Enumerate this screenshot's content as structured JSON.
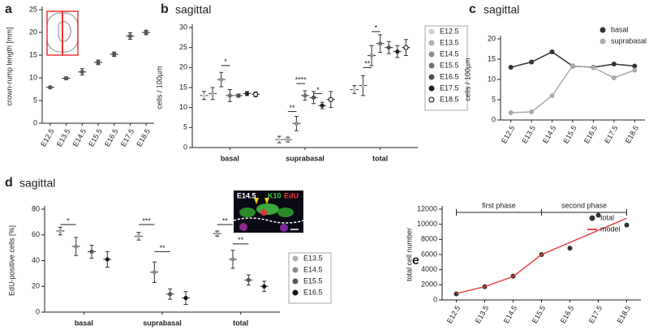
{
  "chart_data": [
    {
      "type": "dot",
      "panel": "a",
      "ylabel": "crown-rump length [mm]",
      "categories": [
        "E12.5",
        "E13.5",
        "E14.5",
        "E15.5",
        "E16.5",
        "E17.5",
        "E18.5"
      ],
      "values": [
        7.9,
        9.9,
        11.3,
        13.4,
        15.2,
        19.2,
        20.0
      ],
      "errors": [
        0.2,
        0.3,
        0.7,
        0.5,
        0.5,
        0.7,
        0.5
      ],
      "color": "#555555",
      "ylim": [
        0,
        25
      ],
      "yticks": [
        0,
        5,
        10,
        15,
        20,
        25
      ]
    },
    {
      "type": "dot",
      "panel": "b",
      "title": "sagittal",
      "ylabel": "cells / 100µm",
      "categories": [
        "basal",
        "suprabasal",
        "total"
      ],
      "series": [
        {
          "name": "E12.5",
          "color": "#d0d0d0",
          "values": [
            13,
            2,
            14.5
          ],
          "errors": [
            1,
            0.8,
            1
          ]
        },
        {
          "name": "E13.5",
          "color": "#b0b0b0",
          "values": [
            13.5,
            2,
            15.5
          ],
          "errors": [
            1.5,
            0.6,
            2.5
          ]
        },
        {
          "name": "E14.5",
          "color": "#909090",
          "values": [
            17,
            6,
            23
          ],
          "errors": [
            1.8,
            1.8,
            2.5
          ]
        },
        {
          "name": "E15.5",
          "color": "#707070",
          "values": [
            13,
            13,
            26
          ],
          "errors": [
            1.5,
            1.2,
            2.2
          ]
        },
        {
          "name": "E16.5",
          "color": "#505050",
          "values": [
            13,
            12.5,
            25
          ],
          "errors": [
            0.4,
            1.5,
            1.5
          ]
        },
        {
          "name": "E17.5",
          "color": "#202020",
          "values": [
            13.5,
            10.5,
            24
          ],
          "errors": [
            0.5,
            0.8,
            1.5
          ]
        },
        {
          "name": "E18.5",
          "color": "#000000",
          "filled": false,
          "values": [
            13.3,
            12,
            25
          ],
          "errors": [
            0.6,
            2,
            2
          ]
        }
      ],
      "annotations": [
        "*",
        "**",
        "****",
        "*",
        "**",
        "*"
      ],
      "ylim": [
        0,
        30
      ],
      "yticks": [
        0,
        5,
        10,
        15,
        20,
        25,
        30
      ],
      "legend": "right"
    },
    {
      "type": "line",
      "panel": "c",
      "title": "sagittal",
      "ylabel": "cells / 100µm",
      "categories": [
        "E12.5",
        "E13.5",
        "E14.5",
        "E15.5",
        "E16.5",
        "E17.5",
        "E18.5"
      ],
      "series": [
        {
          "name": "basal",
          "color": "#333333",
          "style": "line+markers",
          "values": [
            13,
            14.3,
            16.8,
            13.3,
            13,
            13.8,
            13.3
          ]
        },
        {
          "name": "suprabasal",
          "color": "#aaaaaa",
          "style": "line+markers",
          "values": [
            1.8,
            2,
            6,
            13.4,
            12.9,
            10.4,
            12.3
          ]
        }
      ],
      "ylim": [
        0,
        20
      ],
      "yticks": [
        0,
        5,
        10,
        15,
        20
      ],
      "legend": "upper right"
    },
    {
      "type": "dot",
      "panel": "d",
      "title": "sagittal",
      "ylabel": "EdU-positive cells [%]",
      "categories": [
        "basal",
        "suprabasal",
        "total"
      ],
      "series": [
        {
          "name": "E13.5",
          "color": "#b0b0b0",
          "values": [
            63,
            59,
            61
          ],
          "errors": [
            3,
            3,
            2
          ]
        },
        {
          "name": "E14.5",
          "color": "#8a8a8a",
          "values": [
            51,
            31,
            41
          ],
          "errors": [
            7,
            8,
            7
          ]
        },
        {
          "name": "E15.5",
          "color": "#555555",
          "values": [
            47,
            14,
            25
          ],
          "errors": [
            5,
            4,
            4
          ]
        },
        {
          "name": "E16.5",
          "color": "#111111",
          "values": [
            41,
            11,
            20
          ],
          "errors": [
            6,
            5,
            4
          ]
        }
      ],
      "annotations": [
        "*",
        "***",
        "**",
        "**",
        "**"
      ],
      "inset_labels": [
        "E14.5",
        "K10",
        "EdU"
      ],
      "ylim": [
        0,
        80
      ],
      "yticks": [
        0,
        20,
        40,
        60,
        80
      ],
      "legend": "right"
    },
    {
      "type": "line",
      "panel": "e",
      "ylabel": "total cell number",
      "categories": [
        "E12.5",
        "E13.5",
        "E14.5",
        "E15.5",
        "E16.5",
        "E17.5",
        "E18.5"
      ],
      "series": [
        {
          "name": "total",
          "color": "#333333",
          "style": "markers",
          "values": [
            800,
            1750,
            3150,
            6000,
            6850,
            11200,
            9900
          ]
        },
        {
          "name": "model",
          "color": "#e84545",
          "style": "line",
          "values": [
            850,
            1750,
            3100,
            6000,
            7600,
            9200,
            10800
          ]
        }
      ],
      "annotations": [
        "first phase",
        "second phase"
      ],
      "ylim": [
        0,
        12000
      ],
      "yticks": [
        0,
        2000,
        4000,
        6000,
        8000,
        10000,
        12000
      ],
      "legend": "upper right"
    }
  ]
}
